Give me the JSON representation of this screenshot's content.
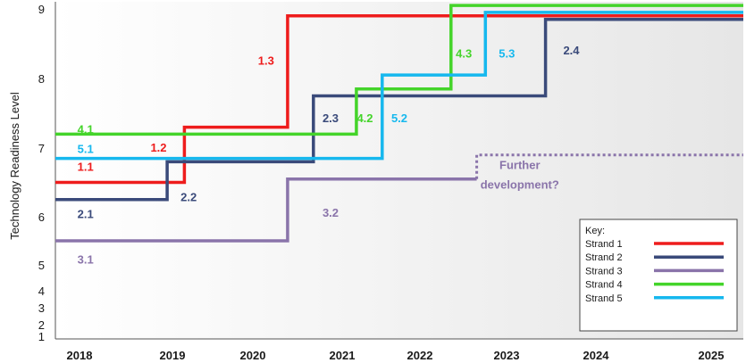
{
  "chart_data": {
    "type": "line",
    "step": true,
    "ylabel": "Technology Readiness Level",
    "xlabel": "",
    "x_ticks": [
      "2018",
      "2019",
      "2020",
      "2021",
      "2022",
      "2023",
      "2024",
      "2025"
    ],
    "y_ticks": [
      "1",
      "2",
      "3",
      "4",
      "5",
      "6",
      "7",
      "8",
      "9"
    ],
    "ylim": [
      1,
      9
    ],
    "background": "light gradient panel",
    "series": [
      {
        "name": "Strand 1",
        "color": "#ee1c1c",
        "points": [
          [
            2017.6,
            6.5
          ],
          [
            2019.1,
            6.5
          ],
          [
            2019.1,
            7.3
          ],
          [
            2020.3,
            7.3
          ],
          [
            2020.3,
            8.9
          ],
          [
            2025.6,
            8.9
          ]
        ]
      },
      {
        "name": "Strand 2",
        "color": "#3a4a7a",
        "points": [
          [
            2017.6,
            6.25
          ],
          [
            2018.9,
            6.25
          ],
          [
            2018.9,
            6.8
          ],
          [
            2020.6,
            6.8
          ],
          [
            2020.6,
            7.75
          ],
          [
            2023.3,
            7.75
          ],
          [
            2023.3,
            8.85
          ],
          [
            2025.6,
            8.85
          ]
        ]
      },
      {
        "name": "Strand 3",
        "color": "#8a74aa",
        "points": [
          [
            2017.6,
            5.5
          ],
          [
            2020.3,
            5.5
          ],
          [
            2020.3,
            6.55
          ],
          [
            2022.5,
            6.55
          ]
        ],
        "projection": {
          "style": "dotted",
          "points": [
            [
              2022.5,
              6.55
            ],
            [
              2022.5,
              6.9
            ],
            [
              2025.6,
              6.9
            ]
          ]
        }
      },
      {
        "name": "Strand 4",
        "color": "#44d42a",
        "points": [
          [
            2017.6,
            7.2
          ],
          [
            2021.1,
            7.2
          ],
          [
            2021.1,
            7.85
          ],
          [
            2022.2,
            7.85
          ],
          [
            2022.2,
            9.05
          ],
          [
            2025.6,
            9.05
          ]
        ]
      },
      {
        "name": "Strand 5",
        "color": "#16b8ee",
        "points": [
          [
            2017.6,
            6.85
          ],
          [
            2021.4,
            6.85
          ],
          [
            2021.4,
            8.05
          ],
          [
            2022.6,
            8.05
          ],
          [
            2022.6,
            8.95
          ],
          [
            2025.6,
            8.95
          ]
        ]
      }
    ],
    "annotations": [
      {
        "text": "1.1",
        "series": "Strand 1",
        "x": 2017.95,
        "y": 6.72
      },
      {
        "text": "1.2",
        "series": "Strand 1",
        "x": 2018.8,
        "y": 7.0
      },
      {
        "text": "1.3",
        "series": "Strand 1",
        "x": 2020.05,
        "y": 8.25
      },
      {
        "text": "2.1",
        "series": "Strand 2",
        "x": 2017.95,
        "y": 6.03
      },
      {
        "text": "2.2",
        "series": "Strand 2",
        "x": 2019.15,
        "y": 6.28
      },
      {
        "text": "2.3",
        "series": "Strand 2",
        "x": 2020.8,
        "y": 7.42
      },
      {
        "text": "2.4",
        "series": "Strand 2",
        "x": 2023.6,
        "y": 8.4
      },
      {
        "text": "3.1",
        "series": "Strand 3",
        "x": 2017.95,
        "y": 5.1
      },
      {
        "text": "3.2",
        "series": "Strand 3",
        "x": 2020.8,
        "y": 6.05
      },
      {
        "text": "Further",
        "series": "Strand 3",
        "x": 2023.0,
        "y": 6.75
      },
      {
        "text": "development?",
        "series": "Strand 3",
        "x": 2023.0,
        "y": 6.46
      },
      {
        "text": "4.1",
        "series": "Strand 4",
        "x": 2017.95,
        "y": 7.26
      },
      {
        "text": "4.2",
        "series": "Strand 4",
        "x": 2021.2,
        "y": 7.42
      },
      {
        "text": "4.3",
        "series": "Strand 4",
        "x": 2022.35,
        "y": 8.35
      },
      {
        "text": "5.1",
        "series": "Strand 5",
        "x": 2017.95,
        "y": 6.98
      },
      {
        "text": "5.2",
        "series": "Strand 5",
        "x": 2021.6,
        "y": 7.42
      },
      {
        "text": "5.3",
        "series": "Strand 5",
        "x": 2022.85,
        "y": 8.35
      }
    ],
    "legend": {
      "title": "Key:",
      "position": "bottom-right",
      "entries": [
        "Strand 1",
        "Strand 2",
        "Strand 3",
        "Strand 4",
        "Strand 5"
      ]
    }
  }
}
